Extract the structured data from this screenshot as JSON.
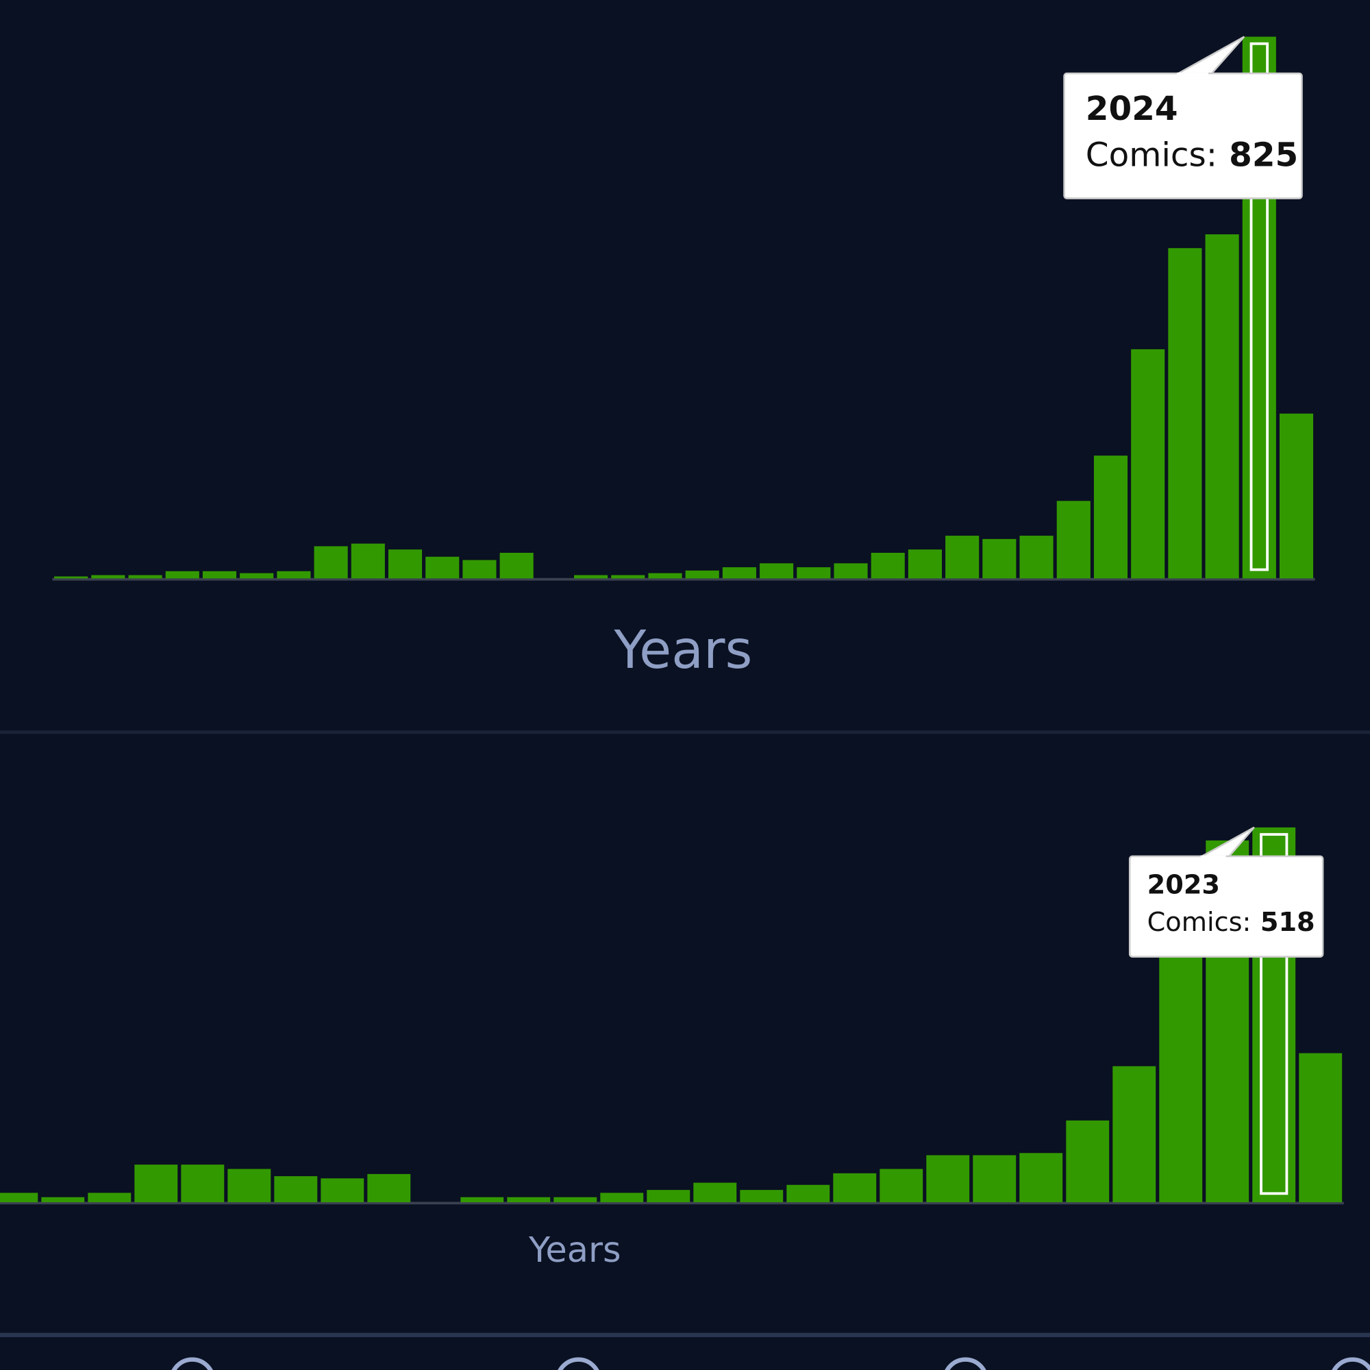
{
  "chart_data": [
    {
      "type": "bar",
      "x_label": "Years",
      "tooltip_label": "Comics:",
      "color": "#339900",
      "categories": [
        null,
        null,
        null,
        null,
        null,
        null,
        null,
        null,
        null,
        null,
        null,
        null,
        null,
        null,
        null,
        null,
        null,
        null,
        null,
        null,
        null,
        null,
        null,
        null,
        null,
        null,
        null,
        null,
        null,
        null,
        null,
        null,
        "2024",
        null
      ],
      "values": [
        3,
        5,
        5,
        11,
        11,
        8,
        11,
        49,
        53,
        44,
        33,
        28,
        39,
        0,
        5,
        5,
        8,
        12,
        17,
        23,
        17,
        23,
        39,
        44,
        65,
        60,
        65,
        118,
        187,
        349,
        503,
        524,
        825,
        251
      ],
      "ylim": [
        0,
        825
      ]
    },
    {
      "type": "bar",
      "x_label": "Years",
      "tooltip_label": "Comics:",
      "color": "#339900",
      "categories": [
        null,
        null,
        null,
        null,
        null,
        null,
        null,
        null,
        null,
        null,
        null,
        null,
        null,
        null,
        null,
        null,
        null,
        null,
        null,
        null,
        null,
        null,
        null,
        null,
        null,
        null,
        null,
        "2023",
        null
      ],
      "values": [
        13,
        7,
        13,
        52,
        52,
        46,
        36,
        33,
        39,
        0,
        7,
        7,
        7,
        13,
        17,
        27,
        17,
        24,
        40,
        46,
        65,
        65,
        68,
        113,
        188,
        370,
        500,
        518,
        206
      ],
      "ylim": [
        0,
        518
      ]
    }
  ]
}
